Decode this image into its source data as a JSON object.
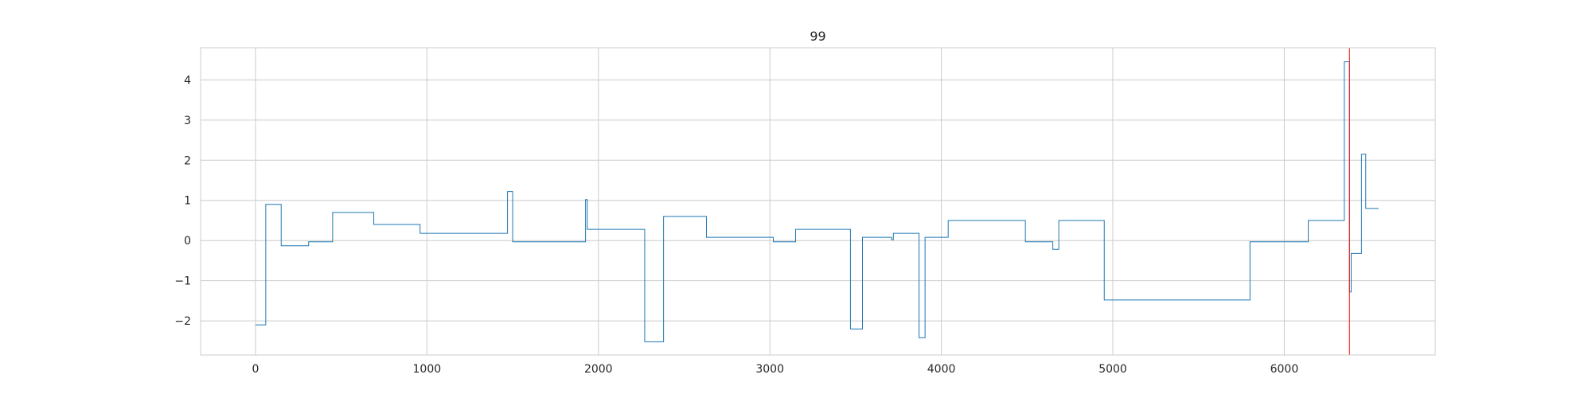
{
  "chart_data": {
    "type": "line",
    "title": "99",
    "xlabel": "",
    "ylabel": "",
    "xlim": [
      -320,
      6880
    ],
    "ylim": [
      -2.85,
      4.8
    ],
    "xticks": [
      0,
      1000,
      2000,
      3000,
      4000,
      5000,
      6000
    ],
    "yticks": [
      -2,
      -1,
      0,
      1,
      2,
      3,
      4
    ],
    "grid": true,
    "colors": {
      "series": "#1f77b4",
      "marker": "#ff0000",
      "grid": "#cccccc",
      "frame": "#cccccc"
    },
    "vline": {
      "x": 6380
    },
    "series": [
      {
        "step": "post",
        "x": [
          0,
          60,
          150,
          310,
          450,
          690,
          960,
          1470,
          1500,
          1925,
          1935,
          2270,
          2380,
          2630,
          3020,
          3150,
          3470,
          3540,
          3710,
          3720,
          3870,
          3905,
          4040,
          4490,
          4650,
          4685,
          4950,
          5800,
          6140,
          6350,
          6380,
          6385,
          6390,
          6450,
          6475,
          6550
        ],
        "values": [
          -2.1,
          0.9,
          -0.13,
          -0.03,
          0.7,
          0.4,
          0.18,
          1.22,
          -0.03,
          1.02,
          0.28,
          -2.52,
          0.6,
          0.08,
          -0.03,
          0.28,
          -2.2,
          0.08,
          0.02,
          0.18,
          -2.42,
          0.08,
          0.5,
          -0.03,
          -0.22,
          0.5,
          -1.48,
          -0.03,
          0.5,
          4.45,
          -1.28,
          -1.28,
          -0.32,
          2.15,
          0.8,
          0.8
        ]
      }
    ]
  }
}
